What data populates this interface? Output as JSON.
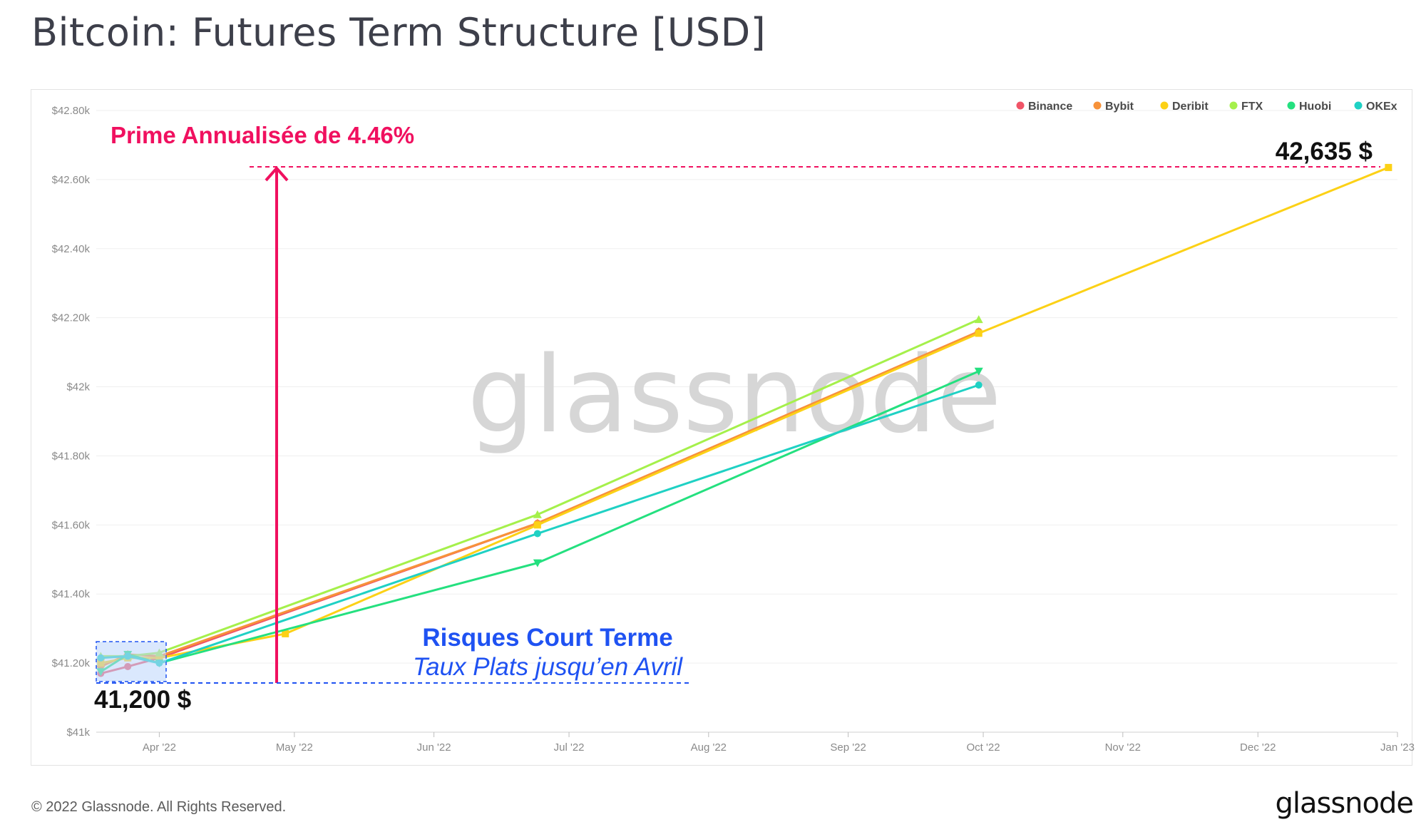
{
  "page": {
    "title": "Bitcoin: Futures Term Structure [USD]",
    "footer_copyright": "© 2022 Glassnode. All Rights Reserved.",
    "footer_logo": "glassnode",
    "watermark": "glassnode"
  },
  "annotations": {
    "premium_label": "Prime Annualisée de 4.46%",
    "end_price_label": "42,635 $",
    "start_price_label": "41,200 $",
    "short_term_title": "Risques Court Terme",
    "short_term_subtitle": "Taux Plats jusqu’en Avril",
    "premium_color": "#f0105f",
    "short_term_color": "#1f52f2"
  },
  "chart_data": {
    "type": "line",
    "title": "Bitcoin: Futures Term Structure [USD]",
    "xlabel": "",
    "ylabel": "",
    "y_ticks": [
      {
        "value": 41000,
        "label": "$41k"
      },
      {
        "value": 41200,
        "label": "$41.20k"
      },
      {
        "value": 41400,
        "label": "$41.40k"
      },
      {
        "value": 41600,
        "label": "$41.60k"
      },
      {
        "value": 41800,
        "label": "$41.80k"
      },
      {
        "value": 42000,
        "label": "$42k"
      },
      {
        "value": 42200,
        "label": "$42.20k"
      },
      {
        "value": 42400,
        "label": "$42.40k"
      },
      {
        "value": 42600,
        "label": "$42.60k"
      },
      {
        "value": 42800,
        "label": "$42.80k"
      }
    ],
    "x_ticks": [
      {
        "date": "2022-04-01",
        "label": "Apr '22"
      },
      {
        "date": "2022-05-01",
        "label": "May '22"
      },
      {
        "date": "2022-06-01",
        "label": "Jun '22"
      },
      {
        "date": "2022-07-01",
        "label": "Jul '22"
      },
      {
        "date": "2022-08-01",
        "label": "Aug '22"
      },
      {
        "date": "2022-09-01",
        "label": "Sep '22"
      },
      {
        "date": "2022-10-01",
        "label": "Oct '22"
      },
      {
        "date": "2022-11-01",
        "label": "Nov '22"
      },
      {
        "date": "2022-12-01",
        "label": "Dec '22"
      },
      {
        "date": "2023-01-01",
        "label": "Jan '23"
      }
    ],
    "xlim": [
      "2022-03-18",
      "2023-01-01"
    ],
    "ylim": [
      41000,
      42800
    ],
    "grid": true,
    "legend_position": "top-right",
    "series": [
      {
        "name": "Binance",
        "color": "#f05467",
        "marker": "circle",
        "points": [
          [
            "2022-03-19",
            41170
          ],
          [
            "2022-03-25",
            41190
          ],
          [
            "2022-04-01",
            41215
          ],
          [
            "2022-06-24",
            41605
          ],
          [
            "2022-09-30",
            42160
          ]
        ]
      },
      {
        "name": "Bybit",
        "color": "#f7923a",
        "marker": "diamond",
        "points": [
          [
            "2022-03-19",
            41190
          ],
          [
            "2022-03-25",
            41225
          ],
          [
            "2022-04-01",
            41220
          ],
          [
            "2022-06-24",
            41605
          ],
          [
            "2022-09-30",
            42160
          ]
        ]
      },
      {
        "name": "Deribit",
        "color": "#fcd116",
        "marker": "square",
        "points": [
          [
            "2022-03-19",
            41200
          ],
          [
            "2022-03-25",
            41215
          ],
          [
            "2022-04-01",
            41215
          ],
          [
            "2022-04-29",
            41285
          ],
          [
            "2022-06-24",
            41600
          ],
          [
            "2022-09-30",
            42155
          ],
          [
            "2022-12-30",
            42635
          ]
        ]
      },
      {
        "name": "FTX",
        "color": "#a5f04b",
        "marker": "triangle-up",
        "points": [
          [
            "2022-03-19",
            41220
          ],
          [
            "2022-03-25",
            41220
          ],
          [
            "2022-04-01",
            41230
          ],
          [
            "2022-06-24",
            41630
          ],
          [
            "2022-09-30",
            42195
          ]
        ]
      },
      {
        "name": "Huobi",
        "color": "#24e07f",
        "marker": "triangle-down",
        "points": [
          [
            "2022-03-19",
            41175
          ],
          [
            "2022-03-25",
            41225
          ],
          [
            "2022-04-01",
            41200
          ],
          [
            "2022-06-24",
            41490
          ],
          [
            "2022-09-30",
            42045
          ]
        ]
      },
      {
        "name": "OKEx",
        "color": "#1fd1c4",
        "marker": "circle",
        "points": [
          [
            "2022-03-19",
            41215
          ],
          [
            "2022-03-25",
            41220
          ],
          [
            "2022-04-01",
            41200
          ],
          [
            "2022-06-24",
            41575
          ],
          [
            "2022-09-30",
            42005
          ]
        ]
      }
    ]
  }
}
